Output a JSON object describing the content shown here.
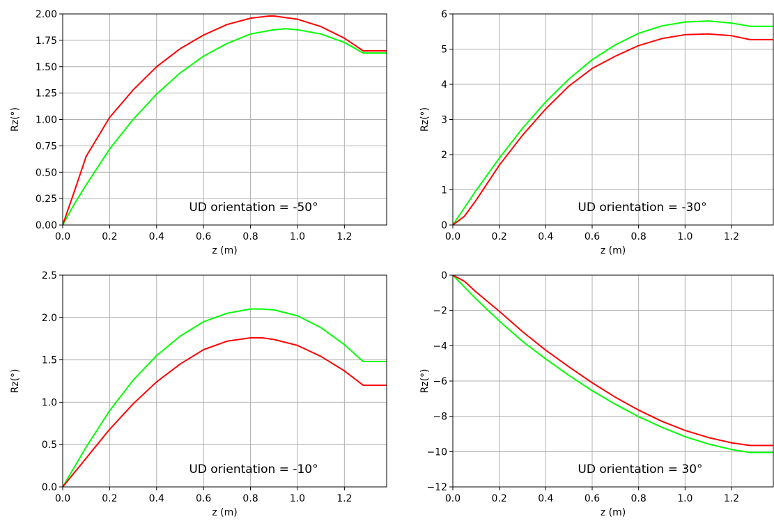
{
  "chart_data": [
    {
      "type": "line",
      "xlabel": "z (m)",
      "ylabel": "Rz(°)",
      "xlim": [
        0,
        1.38
      ],
      "ylim": [
        0,
        2.0
      ],
      "xticks": [
        0.0,
        0.2,
        0.4,
        0.6,
        0.8,
        1.0,
        1.2
      ],
      "xtick_labels": [
        "0.0",
        "0.2",
        "0.4",
        "0.6",
        "0.8",
        "1.0",
        "1.2"
      ],
      "yticks": [
        0.0,
        0.25,
        0.5,
        0.75,
        1.0,
        1.25,
        1.5,
        1.75,
        2.0
      ],
      "ytick_labels": [
        "0.00",
        "0.25",
        "0.50",
        "0.75",
        "1.00",
        "1.25",
        "1.50",
        "1.75",
        "2.00"
      ],
      "grid": true,
      "annotation": "UD orientation = -50°",
      "series": [
        {
          "color": "#00ff00",
          "x": [
            0,
            0.05,
            0.1,
            0.2,
            0.3,
            0.4,
            0.5,
            0.6,
            0.7,
            0.8,
            0.9,
            0.95,
            1.0,
            1.1,
            1.2,
            1.28,
            1.38
          ],
          "y": [
            0,
            0.2,
            0.38,
            0.72,
            1.0,
            1.24,
            1.44,
            1.6,
            1.72,
            1.81,
            1.85,
            1.86,
            1.85,
            1.81,
            1.73,
            1.63,
            1.63
          ]
        },
        {
          "color": "#ff0000",
          "x": [
            0,
            0.05,
            0.1,
            0.2,
            0.3,
            0.4,
            0.5,
            0.6,
            0.7,
            0.8,
            0.88,
            0.9,
            1.0,
            1.1,
            1.2,
            1.28,
            1.38
          ],
          "y": [
            0,
            0.32,
            0.65,
            1.02,
            1.28,
            1.5,
            1.67,
            1.8,
            1.9,
            1.96,
            1.98,
            1.98,
            1.95,
            1.88,
            1.77,
            1.65,
            1.65
          ]
        }
      ]
    },
    {
      "type": "line",
      "xlabel": "z (m)",
      "ylabel": "Rz(°)",
      "xlim": [
        0,
        1.38
      ],
      "ylim": [
        0,
        6
      ],
      "xticks": [
        0.0,
        0.2,
        0.4,
        0.6,
        0.8,
        1.0,
        1.2
      ],
      "xtick_labels": [
        "0.0",
        "0.2",
        "0.4",
        "0.6",
        "0.8",
        "1.0",
        "1.2"
      ],
      "yticks": [
        0,
        1,
        2,
        3,
        4,
        5,
        6
      ],
      "ytick_labels": [
        "0",
        "1",
        "2",
        "3",
        "4",
        "5",
        "6"
      ],
      "grid": true,
      "annotation": "UD orientation = -30°",
      "series": [
        {
          "color": "#00ff00",
          "x": [
            0,
            0.1,
            0.2,
            0.3,
            0.4,
            0.5,
            0.6,
            0.7,
            0.8,
            0.9,
            1.0,
            1.1,
            1.2,
            1.28,
            1.38
          ],
          "y": [
            0,
            0.98,
            1.9,
            2.75,
            3.5,
            4.15,
            4.7,
            5.12,
            5.45,
            5.66,
            5.77,
            5.8,
            5.74,
            5.65,
            5.65
          ]
        },
        {
          "color": "#ff0000",
          "x": [
            0,
            0.05,
            0.1,
            0.2,
            0.3,
            0.4,
            0.5,
            0.6,
            0.7,
            0.8,
            0.9,
            1.0,
            1.1,
            1.2,
            1.28,
            1.38
          ],
          "y": [
            0,
            0.25,
            0.7,
            1.7,
            2.55,
            3.3,
            3.95,
            4.45,
            4.8,
            5.1,
            5.3,
            5.41,
            5.43,
            5.38,
            5.27,
            5.27
          ]
        }
      ]
    },
    {
      "type": "line",
      "xlabel": "z (m)",
      "ylabel": "Rz(°)",
      "xlim": [
        0,
        1.38
      ],
      "ylim": [
        0,
        2.5
      ],
      "xticks": [
        0.0,
        0.2,
        0.4,
        0.6,
        0.8,
        1.0,
        1.2
      ],
      "xtick_labels": [
        "0.0",
        "0.2",
        "0.4",
        "0.6",
        "0.8",
        "1.0",
        "1.2"
      ],
      "yticks": [
        0.0,
        0.5,
        1.0,
        1.5,
        2.0,
        2.5
      ],
      "ytick_labels": [
        "0.0",
        "0.5",
        "1.0",
        "1.5",
        "2.0",
        "2.5"
      ],
      "grid": true,
      "annotation": "UD orientation = -10°",
      "series": [
        {
          "color": "#00ff00",
          "x": [
            0,
            0.1,
            0.2,
            0.3,
            0.4,
            0.5,
            0.6,
            0.7,
            0.8,
            0.85,
            0.9,
            1.0,
            1.1,
            1.2,
            1.28,
            1.38
          ],
          "y": [
            0,
            0.47,
            0.9,
            1.26,
            1.55,
            1.78,
            1.95,
            2.05,
            2.1,
            2.1,
            2.09,
            2.02,
            1.88,
            1.68,
            1.48,
            1.48
          ]
        },
        {
          "color": "#ff0000",
          "x": [
            0,
            0.1,
            0.2,
            0.3,
            0.4,
            0.5,
            0.6,
            0.7,
            0.8,
            0.85,
            0.9,
            1.0,
            1.1,
            1.2,
            1.28,
            1.38
          ],
          "y": [
            0,
            0.34,
            0.68,
            0.98,
            1.24,
            1.45,
            1.62,
            1.72,
            1.76,
            1.76,
            1.74,
            1.67,
            1.54,
            1.37,
            1.2,
            1.2
          ]
        }
      ]
    },
    {
      "type": "line",
      "xlabel": "z (m)",
      "ylabel": "Rz(°)",
      "xlim": [
        0,
        1.38
      ],
      "ylim": [
        -12,
        0
      ],
      "xticks": [
        0.0,
        0.2,
        0.4,
        0.6,
        0.8,
        1.0,
        1.2
      ],
      "xtick_labels": [
        "0.0",
        "0.2",
        "0.4",
        "0.6",
        "0.8",
        "1.0",
        "1.2"
      ],
      "yticks": [
        -12,
        -10,
        -8,
        -6,
        -4,
        -2,
        0
      ],
      "ytick_labels": [
        "−12",
        "−10",
        "−8",
        "−6",
        "−4",
        "−2",
        "0"
      ],
      "grid": true,
      "annotation": "UD orientation =  30°",
      "series": [
        {
          "color": "#00ff00",
          "x": [
            0,
            0.1,
            0.2,
            0.3,
            0.4,
            0.5,
            0.6,
            0.7,
            0.8,
            0.9,
            1.0,
            1.1,
            1.2,
            1.28,
            1.38
          ],
          "y": [
            0,
            -1.35,
            -2.6,
            -3.75,
            -4.75,
            -5.68,
            -6.55,
            -7.32,
            -8.02,
            -8.62,
            -9.15,
            -9.57,
            -9.88,
            -10.05,
            -10.05
          ]
        },
        {
          "color": "#ff0000",
          "x": [
            0,
            0.05,
            0.1,
            0.2,
            0.3,
            0.4,
            0.5,
            0.6,
            0.7,
            0.8,
            0.9,
            1.0,
            1.1,
            1.2,
            1.28,
            1.38
          ],
          "y": [
            0,
            -0.35,
            -0.95,
            -2.05,
            -3.2,
            -4.25,
            -5.2,
            -6.1,
            -6.92,
            -7.65,
            -8.28,
            -8.8,
            -9.2,
            -9.5,
            -9.65,
            -9.65
          ]
        }
      ]
    }
  ]
}
